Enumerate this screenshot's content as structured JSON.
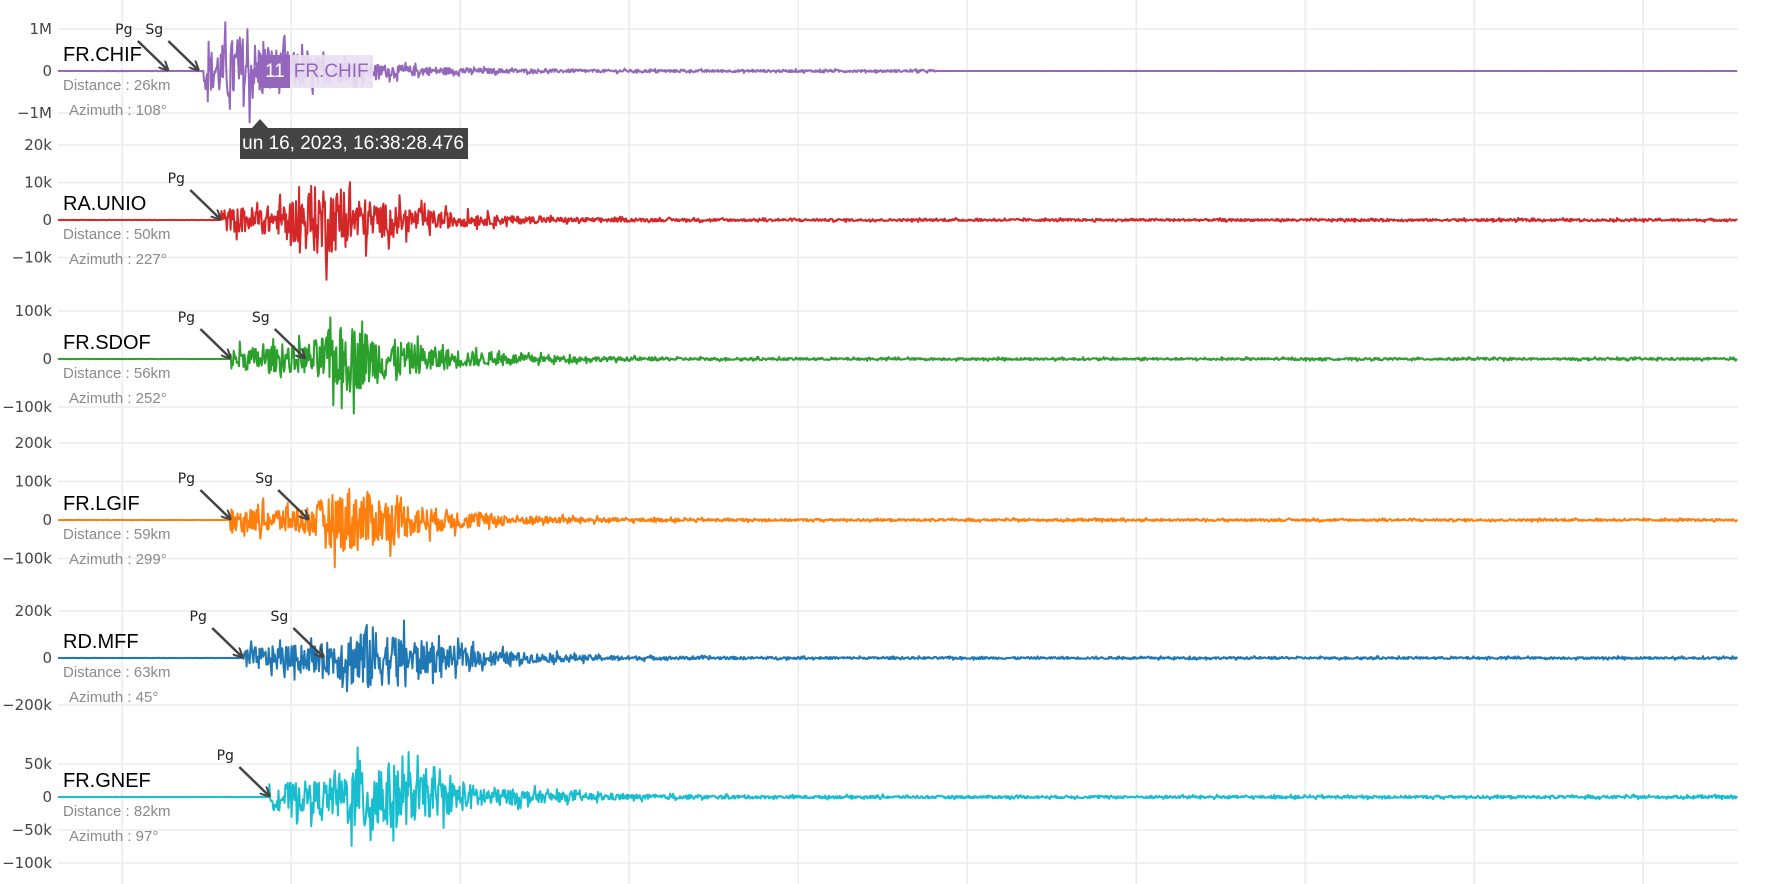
{
  "chart_data": {
    "type": "line",
    "grid": true,
    "x_unit": "s",
    "xlim": [
      0,
      99.4
    ],
    "x_gridlines": [
      3.8,
      13.8,
      23.8,
      33.8,
      43.8,
      53.8,
      63.8,
      73.8,
      83.8,
      93.8
    ],
    "traces": [
      {
        "station": "FR.CHIF",
        "distance": "Distance : 26km",
        "azimuth": "Azimuth : 108°",
        "color": "#9467bd",
        "yticks": [
          {
            "v": 1000000,
            "label": "1M"
          },
          {
            "v": 0,
            "label": "0"
          },
          {
            "v": -1000000,
            "label": "−1M"
          }
        ],
        "peak_pos": 1600000,
        "peak_neg": -1500000,
        "phases": [
          {
            "name": "Pg",
            "t": 6.5
          },
          {
            "name": "Sg",
            "t": 8.3
          }
        ],
        "onset": 8.6
      },
      {
        "station": "RA.UNIO",
        "distance": "Distance : 50km",
        "azimuth": "Azimuth : 227°",
        "color": "#d62728",
        "yticks": [
          {
            "v": 20000,
            "label": "20k"
          },
          {
            "v": 10000,
            "label": "10k"
          },
          {
            "v": 0,
            "label": "0"
          },
          {
            "v": -10000,
            "label": "−10k"
          }
        ],
        "peak_pos": 18000,
        "peak_neg": -17000,
        "phases": [
          {
            "name": "Pg",
            "t": 9.6
          }
        ],
        "onset": 9.6
      },
      {
        "station": "FR.SDOF",
        "distance": "Distance : 56km",
        "azimuth": "Azimuth : 252°",
        "color": "#2ca02c",
        "yticks": [
          {
            "v": 100000,
            "label": "100k"
          },
          {
            "v": 0,
            "label": "0"
          },
          {
            "v": -100000,
            "label": "−100k"
          }
        ],
        "peak_pos": 115000,
        "peak_neg": -135000,
        "phases": [
          {
            "name": "Pg",
            "t": 10.2
          },
          {
            "name": "Sg",
            "t": 14.6
          }
        ],
        "onset": 10.2
      },
      {
        "station": "FR.LGIF",
        "distance": "Distance : 59km",
        "azimuth": "Azimuth : 299°",
        "color": "#ff7f0e",
        "yticks": [
          {
            "v": 200000,
            "label": "200k"
          },
          {
            "v": 100000,
            "label": "100k"
          },
          {
            "v": 0,
            "label": "0"
          },
          {
            "v": -100000,
            "label": "−100k"
          }
        ],
        "peak_pos": 165000,
        "peak_neg": -140000,
        "phases": [
          {
            "name": "Pg",
            "t": 10.2
          },
          {
            "name": "Sg",
            "t": 14.8
          }
        ],
        "onset": 10.2
      },
      {
        "station": "RD.MFF",
        "distance": "Distance : 63km",
        "azimuth": "Azimuth : 45°",
        "color": "#1f77b4",
        "yticks": [
          {
            "v": 200000,
            "label": "200k"
          },
          {
            "v": 0,
            "label": "0"
          },
          {
            "v": -200000,
            "label": "−200k"
          }
        ],
        "peak_pos": 250000,
        "peak_neg": -270000,
        "phases": [
          {
            "name": "Pg",
            "t": 10.9
          },
          {
            "name": "Sg",
            "t": 15.7
          }
        ],
        "onset": 10.9
      },
      {
        "station": "FR.GNEF",
        "distance": "Distance : 82km",
        "azimuth": "Azimuth : 97°",
        "color": "#17becf",
        "yticks": [
          {
            "v": 50000,
            "label": "50k"
          },
          {
            "v": 0,
            "label": "0"
          },
          {
            "v": -50000,
            "label": "−50k"
          },
          {
            "v": -100000,
            "label": "−100k"
          }
        ],
        "peak_pos": 75000,
        "peak_neg": -120000,
        "phases": [
          {
            "name": "Pg",
            "t": 12.5
          }
        ],
        "onset": 12.5
      }
    ]
  },
  "tooltip": {
    "text": "un 16, 2023, 16:38:28.476"
  },
  "hover_label": {
    "count": "11",
    "name": "FR.CHIF",
    "color": "#9467bd"
  }
}
